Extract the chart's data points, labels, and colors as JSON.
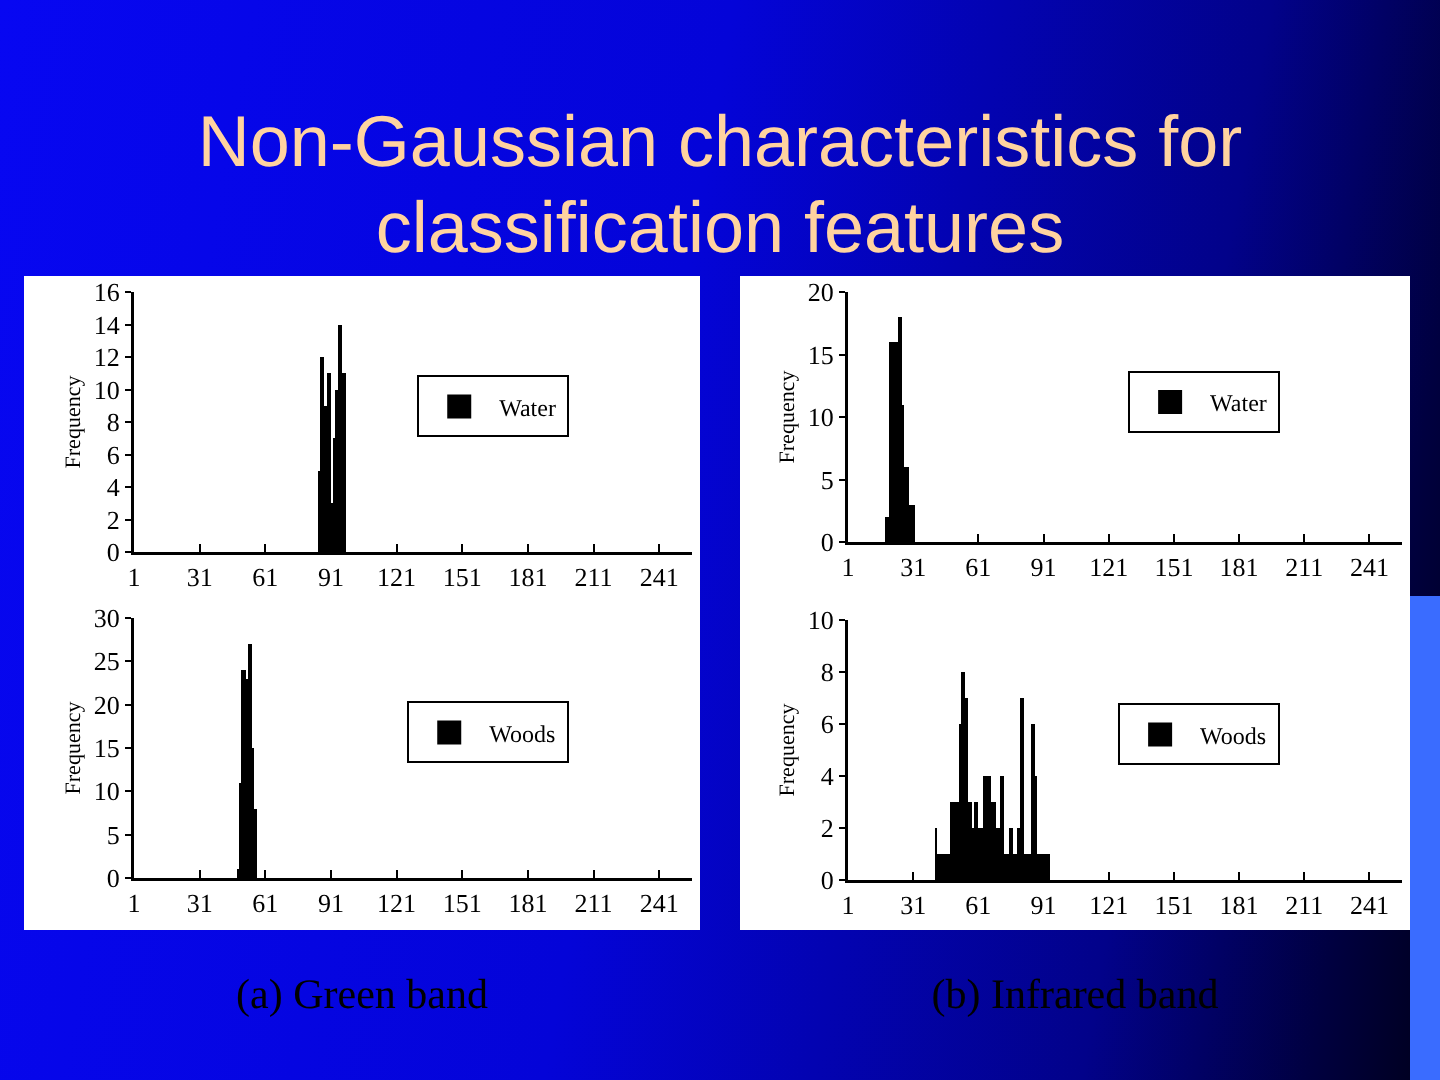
{
  "chart_data": [
    {
      "type": "histogram",
      "title": "Non-Gaussian characteristics for classification features",
      "ylabel": "Frequency",
      "bins": [
        85,
        86,
        87,
        88,
        89,
        90,
        91,
        92,
        93,
        94,
        95,
        96,
        97,
        98
      ],
      "series": [
        {
          "name": "Water",
          "color": "#000000",
          "values": [
            5,
            12,
            12,
            9,
            11,
            11,
            3,
            7,
            10,
            14,
            14,
            11,
            11
          ]
        }
      ],
      "xlim": [
        1,
        256
      ],
      "xticks": [
        1,
        31,
        61,
        91,
        121,
        151,
        181,
        211,
        241
      ],
      "ylim": [
        0,
        16
      ],
      "yticks": [
        0,
        2,
        4,
        6,
        8,
        10,
        12,
        14,
        16
      ],
      "legend": "right"
    },
    {
      "type": "histogram",
      "ylabel": "Frequency",
      "bins": [
        18,
        19,
        20,
        21,
        22,
        23,
        24,
        25,
        26,
        27,
        28,
        29,
        30,
        31,
        32
      ],
      "series": [
        {
          "name": "Water",
          "color": "#000000",
          "values": [
            2,
            2,
            16,
            16,
            16,
            16,
            18,
            18,
            11,
            6,
            6,
            3,
            3,
            3
          ]
        }
      ],
      "xlim": [
        1,
        256
      ],
      "xticks": [
        1,
        31,
        61,
        91,
        121,
        151,
        181,
        211,
        241
      ],
      "ylim": [
        0,
        20
      ],
      "yticks": [
        0,
        5,
        10,
        15,
        20
      ],
      "legend": "right"
    },
    {
      "type": "histogram",
      "ylabel": "Frequency",
      "annotations": [
        "(a) Green band"
      ],
      "bins": [
        48,
        49,
        50,
        51,
        52,
        53,
        54,
        55,
        56,
        57
      ],
      "series": [
        {
          "name": "Woods",
          "color": "#000000",
          "values": [
            1,
            11,
            24,
            24,
            23,
            27,
            27,
            15,
            8
          ]
        }
      ],
      "xlim": [
        1,
        256
      ],
      "xticks": [
        1,
        31,
        61,
        91,
        121,
        151,
        181,
        211,
        241
      ],
      "ylim": [
        0,
        30
      ],
      "yticks": [
        0,
        5,
        10,
        15,
        20,
        25,
        30
      ],
      "legend": "right"
    },
    {
      "type": "histogram",
      "ylabel": "Frequency",
      "annotations": [
        "(b) Infrared band"
      ],
      "bins": [
        41,
        42,
        43,
        44,
        45,
        46,
        47,
        48,
        49,
        50,
        51,
        52,
        53,
        54,
        55,
        56,
        57,
        58,
        59,
        60,
        61,
        62,
        63,
        64,
        65,
        66,
        67,
        68,
        69,
        70,
        71,
        72,
        73,
        74,
        75,
        76,
        77,
        78,
        79,
        80,
        81,
        82,
        83,
        84,
        85,
        86,
        87,
        88,
        89,
        90,
        91,
        92,
        93,
        94
      ],
      "series": [
        {
          "name": "Woods",
          "color": "#000000",
          "values": [
            2,
            1,
            1,
            1,
            1,
            1,
            1,
            3,
            3,
            3,
            3,
            6,
            8,
            8,
            7,
            3,
            3,
            2,
            3,
            3,
            2,
            2,
            4,
            4,
            4,
            4,
            3,
            3,
            2,
            2,
            4,
            4,
            1,
            1,
            2,
            2,
            1,
            1,
            2,
            7,
            7,
            1,
            1,
            1,
            6,
            6,
            4,
            1,
            1,
            1,
            1,
            1,
            1
          ]
        }
      ],
      "xlim": [
        1,
        256
      ],
      "xticks": [
        1,
        31,
        61,
        91,
        121,
        151,
        181,
        211,
        241
      ],
      "ylim": [
        0,
        10
      ],
      "yticks": [
        0,
        2,
        4,
        6,
        8,
        10
      ],
      "legend": "right"
    }
  ]
}
